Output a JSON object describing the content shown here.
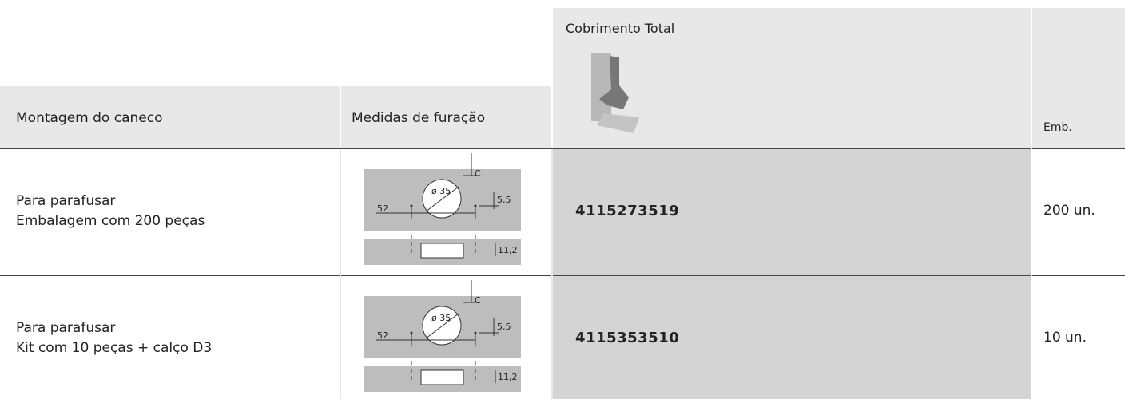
{
  "header": {
    "columns": [
      "Montagem do caneco",
      "Medidas de furação",
      "Cobrimento Total",
      "Emb."
    ]
  },
  "rows": [
    {
      "mounting": [
        "Para parafusar",
        "Embalagem com 200 peças"
      ],
      "diagram": {
        "diameter": "ø 35",
        "c": "C",
        "offset": "5,5",
        "distance": "52",
        "depth": "11,2"
      },
      "code": "4115273519",
      "pack": "200 un."
    },
    {
      "mounting": [
        "Para parafusar",
        "Kit com 10 peças + calço D3"
      ],
      "diagram": {
        "diameter": "ø 35",
        "c": "C",
        "offset": "5,5",
        "distance": "52",
        "depth": "11,2"
      },
      "code": "4115353510",
      "pack": "10 un."
    }
  ]
}
